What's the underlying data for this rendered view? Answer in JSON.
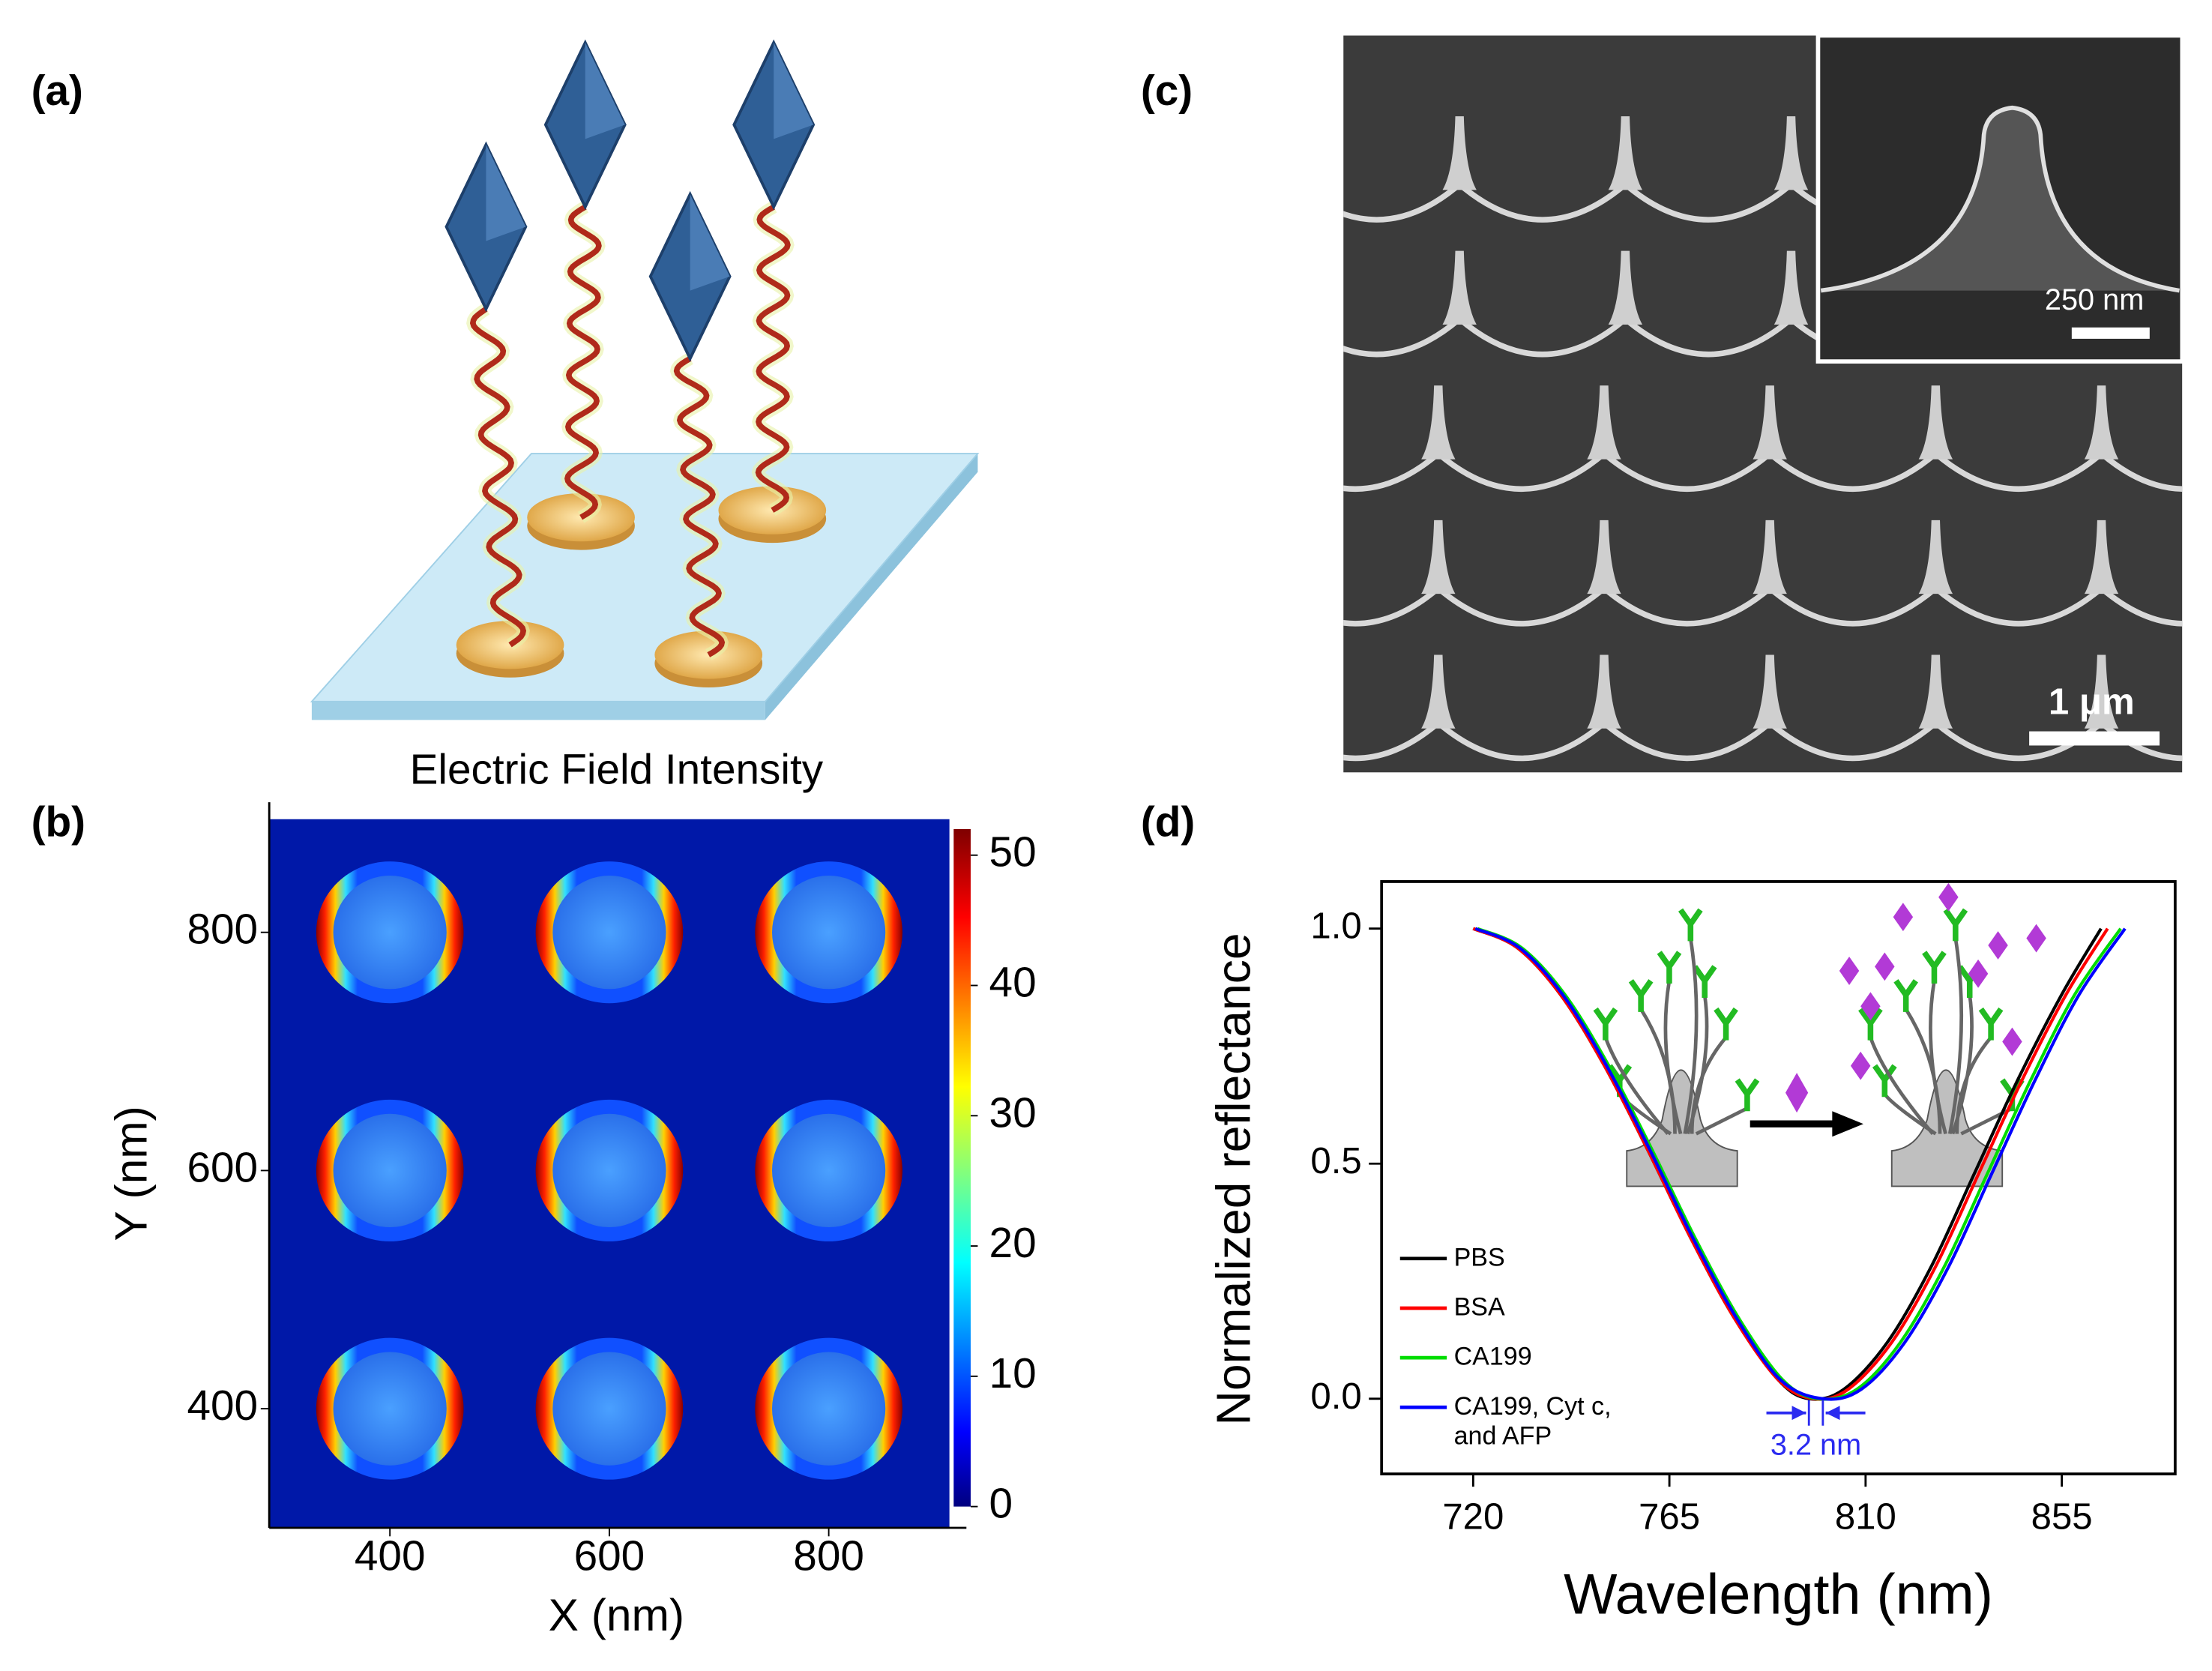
{
  "panels": {
    "a": {
      "label": "(a)"
    },
    "c": {
      "label": "(c)",
      "inset_scale_label": "250 nm",
      "scale_label": "1 μm"
    }
  },
  "chart_data": [
    {
      "type": "heatmap",
      "panel_label": "(b)",
      "title": "Electric Field Intensity",
      "xlabel": "X (nm)",
      "ylabel": "Y (nm)",
      "xlim": [
        290,
        910
      ],
      "ylim": [
        300,
        895
      ],
      "xticks": [
        400,
        600,
        800
      ],
      "yticks": [
        400,
        600,
        800
      ],
      "colorbar": {
        "lim": [
          0,
          52
        ],
        "ticks": [
          0,
          10,
          20,
          30,
          40,
          50
        ],
        "colormap": "jet"
      },
      "hotspots": {
        "x": [
          400,
          600,
          800
        ],
        "y": [
          400,
          600,
          800
        ]
      }
    },
    {
      "type": "line",
      "panel_label": "(d)",
      "xlabel": "Wavelength (nm)",
      "ylabel": "Normalized reflectance",
      "xlim": [
        699,
        881
      ],
      "ylim": [
        -0.16,
        1.1
      ],
      "xticks": [
        720,
        765,
        810,
        855
      ],
      "yticks": [
        {
          "value": 0,
          "label": "0.0"
        },
        0.5,
        {
          "value": 1,
          "label": "1.0"
        }
      ],
      "legend": "lower left",
      "series": [
        {
          "name": "PBS",
          "color": "#000000",
          "x": [
            720,
            730,
            740,
            750,
            760,
            770,
            780,
            790,
            797,
            805,
            815,
            825,
            835,
            845,
            855,
            864
          ],
          "values": [
            1.0,
            0.96,
            0.86,
            0.71,
            0.53,
            0.34,
            0.17,
            0.04,
            0.0,
            0.02,
            0.12,
            0.28,
            0.48,
            0.68,
            0.86,
            1.0
          ]
        },
        {
          "name": "BSA",
          "color": "#ff0000",
          "x": [
            720,
            730,
            740,
            750,
            760,
            770,
            780,
            790,
            798,
            806,
            816,
            826,
            836,
            846,
            856,
            865.5
          ],
          "values": [
            1.0,
            0.96,
            0.86,
            0.71,
            0.53,
            0.34,
            0.17,
            0.04,
            0.0,
            0.02,
            0.12,
            0.28,
            0.48,
            0.68,
            0.86,
            1.0
          ]
        },
        {
          "name": "CA199",
          "color": "#00dd00",
          "x": [
            721,
            731,
            741,
            751,
            761,
            771,
            781,
            791,
            799,
            808,
            818,
            828,
            838,
            848,
            858,
            868.5
          ],
          "values": [
            1.0,
            0.96,
            0.86,
            0.71,
            0.53,
            0.34,
            0.17,
            0.04,
            0.0,
            0.02,
            0.12,
            0.28,
            0.48,
            0.68,
            0.86,
            1.0
          ]
        },
        {
          "name": "CA199, Cyt c, and AFP",
          "color": "#0000ff",
          "x": [
            720.5,
            730.5,
            740.5,
            750.5,
            760.5,
            770.5,
            780.5,
            790.5,
            800.2,
            809,
            819,
            829,
            839,
            849,
            859,
            869.5
          ],
          "values": [
            1.0,
            0.96,
            0.86,
            0.71,
            0.53,
            0.34,
            0.17,
            0.04,
            0.0,
            0.02,
            0.12,
            0.28,
            0.48,
            0.68,
            0.86,
            1.0
          ]
        }
      ],
      "annotation": {
        "text": "3.2 nm",
        "x": [
          797,
          800.2
        ],
        "color": "#2b2bf0"
      }
    }
  ]
}
